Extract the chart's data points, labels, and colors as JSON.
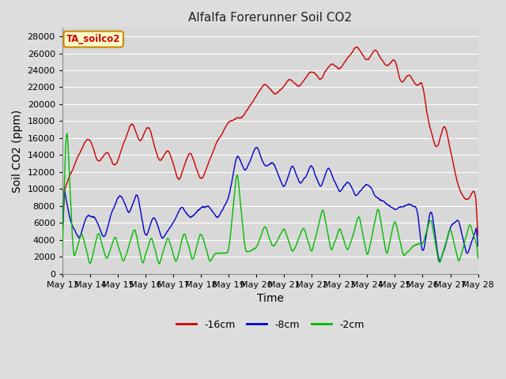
{
  "title": "Alfalfa Forerunner Soil CO2",
  "xlabel": "Time",
  "ylabel": "Soil CO2 (ppm)",
  "ylim": [
    0,
    29000
  ],
  "yticks": [
    0,
    2000,
    4000,
    6000,
    8000,
    10000,
    12000,
    14000,
    16000,
    18000,
    20000,
    22000,
    24000,
    26000,
    28000
  ],
  "xtick_labels": [
    "May 13",
    "May 14",
    "May 15",
    "May 16",
    "May 17",
    "May 18",
    "May 19",
    "May 20",
    "May 21",
    "May 22",
    "May 23",
    "May 24",
    "May 25",
    "May 26",
    "May 27",
    "May 28"
  ],
  "label_16cm": "-16cm",
  "label_8cm": "-8cm",
  "label_2cm": "-2cm",
  "color_16cm": "#cc0000",
  "color_8cm": "#0000cc",
  "color_2cm": "#00bb00",
  "tag_label": "TA_soilco2",
  "tag_bg": "#ffffcc",
  "tag_border": "#cc8800",
  "tag_text_color": "#cc0000",
  "fig_bg": "#dddddd",
  "plot_bg": "#d8d8d8",
  "grid_color": "#ffffff",
  "title_fontsize": 11,
  "axis_label_fontsize": 10,
  "tick_fontsize": 8,
  "legend_fontsize": 9
}
